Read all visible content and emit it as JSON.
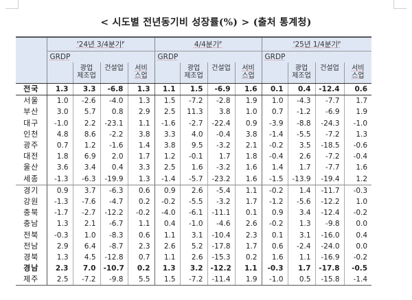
{
  "title": "< 시도별 전년동기비 성장률(%) > (출처 통계청)",
  "table": {
    "periods": [
      "'24년 3/4분기ᴾ",
      "4/4분기ᴾ",
      "'25년 1/4분기ᴾ"
    ],
    "grdp_label": "GRDP",
    "sub_headers": [
      "광업\n제조업",
      "건설업",
      "서비\n스업"
    ],
    "sub_line1": [
      "광업",
      "건설업",
      "서비"
    ],
    "sub_line2": [
      "제조업",
      "",
      "스업"
    ],
    "rows": [
      {
        "region": "전국",
        "bold": true,
        "values": [
          "1.3",
          "3.3",
          "-6.8",
          "1.3",
          "1.1",
          "1.5",
          "-6.9",
          "1.6",
          "0.1",
          "0.4",
          "-12.4",
          "0.6"
        ]
      },
      {
        "region": "서울",
        "bold": false,
        "values": [
          "1.0",
          "-2.6",
          "-4.0",
          "1.3",
          "1.5",
          "-7.2",
          "-2.8",
          "1.9",
          "1.0",
          "-4.3",
          "-7.7",
          "1.7"
        ]
      },
      {
        "region": "부산",
        "bold": false,
        "values": [
          "3.0",
          "5.7",
          "0.8",
          "2.9",
          "2.5",
          "11.3",
          "3.8",
          "1.0",
          "0.7",
          "-1.2",
          "-6.9",
          "1.9"
        ]
      },
      {
        "region": "대구",
        "bold": false,
        "values": [
          "-1.0",
          "2.2",
          "-23.1",
          "1.1",
          "-1.6",
          "-2.7",
          "-22.4",
          "0.9",
          "-3.9",
          "-8.8",
          "-24.3",
          "-1.0"
        ]
      },
      {
        "region": "인천",
        "bold": false,
        "values": [
          "4.8",
          "8.6",
          "-2.2",
          "3.8",
          "3.3",
          "4.0",
          "-0.4",
          "3.8",
          "-1.4",
          "-5.5",
          "-7.2",
          "1.3"
        ]
      },
      {
        "region": "광주",
        "bold": false,
        "values": [
          "0.7",
          "1.2",
          "-1.6",
          "1.4",
          "3.8",
          "9.5",
          "-3.2",
          "2.1",
          "-0.2",
          "3.5",
          "-18.5",
          "-0.6"
        ]
      },
      {
        "region": "대전",
        "bold": false,
        "values": [
          "1.8",
          "6.9",
          "2.0",
          "1.7",
          "1.2",
          "-0.1",
          "1.7",
          "1.8",
          "-0.4",
          "2.6",
          "-7.2",
          "-0.4"
        ]
      },
      {
        "region": "울산",
        "bold": false,
        "values": [
          "3.6",
          "3.4",
          "0.4",
          "3.3",
          "2.5",
          "1.6",
          "-3.2",
          "1.6",
          "1.4",
          "1.7",
          "-7.7",
          "1.6"
        ]
      },
      {
        "region": "세종",
        "bold": false,
        "values": [
          "-1.3",
          "-6.3",
          "-19.9",
          "1.3",
          "-1.4",
          "-5.7",
          "-23.2",
          "1.6",
          "-1.5",
          "-13.9",
          "-19.4",
          "1.2"
        ]
      },
      {
        "region": "경기",
        "bold": false,
        "values": [
          "0.9",
          "3.7",
          "-6.3",
          "0.6",
          "0.9",
          "2.6",
          "-5.4",
          "1.1",
          "-0.2",
          "1.4",
          "-11.7",
          "-0.3"
        ]
      },
      {
        "region": "강원",
        "bold": false,
        "values": [
          "-1.3",
          "-7.6",
          "-4.7",
          "0.2",
          "-0.2",
          "-5.5",
          "-3.2",
          "1.7",
          "-1.2",
          "-5.6",
          "-12.2",
          "1.0"
        ]
      },
      {
        "region": "충북",
        "bold": false,
        "values": [
          "-1.7",
          "-2.7",
          "-12.2",
          "-0.2",
          "-4.0",
          "-6.1",
          "-11.1",
          "0.1",
          "0.9",
          "3.4",
          "-12.4",
          "-0.2"
        ]
      },
      {
        "region": "충남",
        "bold": false,
        "values": [
          "1.3",
          "2.1",
          "-6.7",
          "1.1",
          "0.4",
          "-1.0",
          "-4.6",
          "2.6",
          "-0.2",
          "1.3",
          "-9.8",
          "0.0"
        ]
      },
      {
        "region": "전북",
        "bold": false,
        "values": [
          "-0.3",
          "1.0",
          "-8.3",
          "0.6",
          "1.1",
          "3.1",
          "-10.4",
          "2.3",
          "0.1",
          "3.1",
          "-16.0",
          "0.4"
        ]
      },
      {
        "region": "전남",
        "bold": false,
        "values": [
          "2.9",
          "6.4",
          "-8.7",
          "2.3",
          "2.6",
          "5.2",
          "-17.8",
          "1.7",
          "0.6",
          "-2.4",
          "-24.0",
          "0.0"
        ]
      },
      {
        "region": "경북",
        "bold": false,
        "values": [
          "1.3",
          "4.5",
          "-12.8",
          "0.7",
          "1.1",
          "2.6",
          "-15.3",
          "0.2",
          "1.6",
          "1.1",
          "-16.9",
          "-0.2"
        ]
      },
      {
        "region": "경남",
        "bold": true,
        "values": [
          "2.3",
          "7.0",
          "-10.7",
          "0.2",
          "1.3",
          "3.2",
          "-12.2",
          "1.1",
          "-0.3",
          "1.7",
          "-17.8",
          "-0.5"
        ]
      },
      {
        "region": "제주",
        "bold": false,
        "values": [
          "2.5",
          "-7.2",
          "-9.8",
          "5.5",
          "1.5",
          "-7.2",
          "-11.4",
          "1.9",
          "-1.0",
          "0.5",
          "-15.8",
          "-1.4"
        ]
      }
    ]
  },
  "colors": {
    "header_bg": "#dfe7f5",
    "border": "#555555"
  }
}
